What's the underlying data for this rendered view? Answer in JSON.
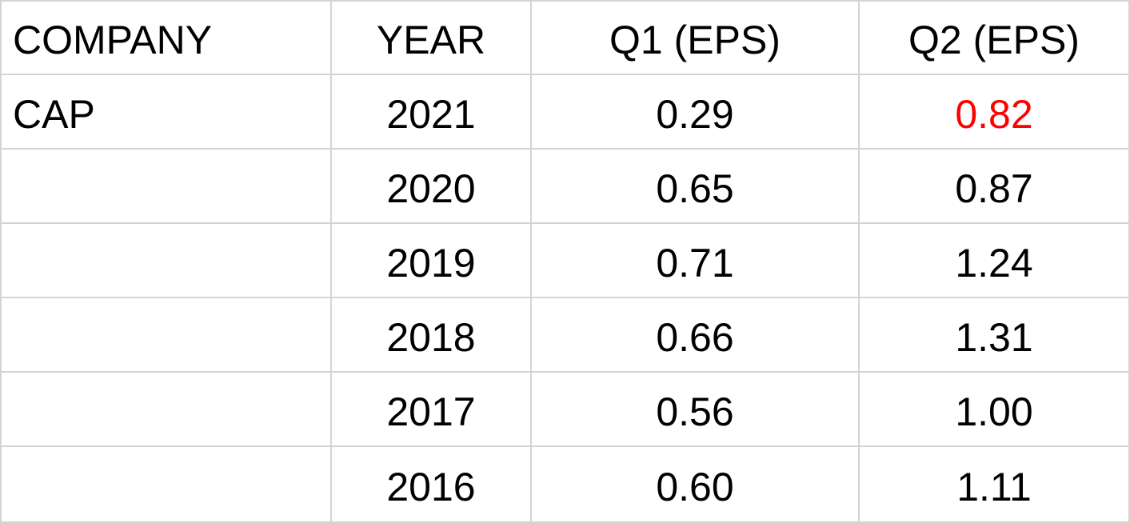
{
  "table": {
    "header": [
      "COMPANY",
      "YEAR",
      "Q1 (EPS)",
      "Q2 (EPS)"
    ],
    "rows": [
      [
        "CAP",
        "2021",
        "0.29",
        "0.82"
      ],
      [
        null,
        "2020",
        "0.65",
        "0.87"
      ],
      [
        null,
        "2019",
        "0.71",
        "1.24"
      ],
      [
        null,
        "2018",
        "0.66",
        "1.31"
      ],
      [
        null,
        "2017",
        "0.56",
        "1.00"
      ],
      [
        null,
        "2016",
        "0.60",
        "1.11"
      ]
    ]
  }
}
